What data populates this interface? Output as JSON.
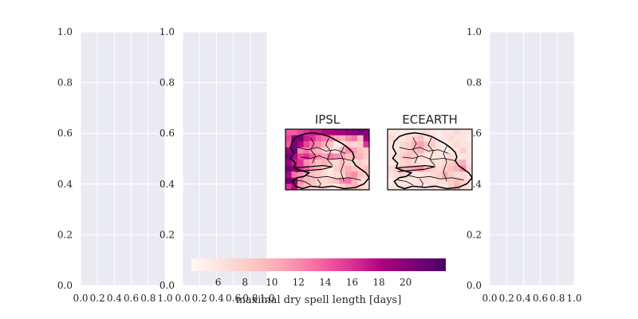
{
  "chart_data": [
    {
      "type": "scatter",
      "panel": "empty-axes-1",
      "x_ticks": [
        "0.0",
        "0.2",
        "0.4",
        "0.6",
        "0.8",
        "1.0"
      ],
      "y_ticks": [
        "0.0",
        "0.2",
        "0.4",
        "0.6",
        "0.8",
        "1.0"
      ],
      "xlim": [
        0,
        1
      ],
      "ylim": [
        0,
        1
      ],
      "grid": true,
      "values": []
    },
    {
      "type": "scatter",
      "panel": "empty-axes-2",
      "x_ticks": [
        "0.0",
        "0.2",
        "0.4",
        "0.6",
        "0.8",
        "1.0"
      ],
      "y_ticks": [
        "0.0",
        "0.2",
        "0.4",
        "0.6",
        "0.8",
        "1.0"
      ],
      "xlim": [
        0,
        1
      ],
      "ylim": [
        0,
        1
      ],
      "grid": true,
      "values": []
    },
    {
      "type": "heatmap",
      "panel": "map-ipsl",
      "title": "IPSL",
      "colormap": "RdPu",
      "grid_values": [
        [
          14,
          14,
          15,
          16,
          17,
          17,
          18,
          18,
          19,
          19,
          20,
          20,
          21,
          20
        ],
        [
          15,
          20,
          21,
          17,
          16,
          14,
          13,
          12,
          11,
          10,
          12,
          13,
          9,
          19
        ],
        [
          14,
          21,
          18,
          15,
          13,
          12,
          10,
          9,
          5,
          6,
          8,
          7,
          8,
          16
        ],
        [
          19,
          21,
          12,
          13,
          11,
          10,
          8,
          7,
          6,
          10,
          12,
          11,
          9,
          8
        ],
        [
          21,
          18,
          15,
          16,
          14,
          12,
          11,
          13,
          12,
          11,
          9,
          10,
          10,
          8
        ],
        [
          19,
          17,
          16,
          12,
          11,
          9,
          10,
          8,
          7,
          9,
          8,
          7,
          8,
          7
        ],
        [
          21,
          19,
          16,
          14,
          11,
          10,
          7,
          6,
          8,
          9,
          10,
          9,
          8,
          9
        ],
        [
          18,
          13,
          12,
          10,
          9,
          8,
          7,
          6,
          7,
          8,
          11,
          12,
          9,
          8
        ],
        [
          21,
          20,
          12,
          10,
          9,
          8,
          7,
          8,
          9,
          12,
          13,
          10,
          7,
          6
        ],
        [
          16,
          18,
          11,
          9,
          8,
          7,
          7,
          6,
          5,
          8,
          9,
          10,
          8,
          7
        ]
      ]
    },
    {
      "type": "heatmap",
      "panel": "map-ecearth",
      "title": "ECEARTH",
      "colormap": "RdPu",
      "grid_values": [
        [
          6,
          6,
          5,
          6,
          5,
          6,
          7,
          6,
          5,
          6,
          6,
          7,
          6,
          6
        ],
        [
          7,
          6,
          6,
          7,
          8,
          9,
          6,
          7,
          5,
          6,
          7,
          6,
          6,
          5
        ],
        [
          6,
          6,
          7,
          8,
          10,
          11,
          9,
          8,
          6,
          5,
          6,
          7,
          6,
          6
        ],
        [
          6,
          6,
          7,
          8,
          9,
          10,
          7,
          7,
          6,
          5,
          6,
          6,
          8,
          6
        ],
        [
          6,
          7,
          8,
          9,
          8,
          7,
          6,
          6,
          6,
          6,
          7,
          6,
          6,
          6
        ],
        [
          6,
          6,
          7,
          8,
          7,
          6,
          6,
          7,
          6,
          7,
          8,
          9,
          10,
          6
        ],
        [
          7,
          8,
          9,
          10,
          11,
          12,
          9,
          8,
          7,
          8,
          9,
          10,
          12,
          7
        ],
        [
          6,
          7,
          8,
          7,
          6,
          6,
          6,
          7,
          8,
          10,
          8,
          7,
          7,
          6
        ],
        [
          5,
          6,
          6,
          6,
          6,
          7,
          7,
          6,
          7,
          7,
          8,
          9,
          8,
          6
        ],
        [
          6,
          6,
          6,
          6,
          6,
          6,
          6,
          7,
          6,
          6,
          8,
          10,
          7,
          6
        ]
      ]
    },
    {
      "type": "scatter",
      "panel": "empty-axes-3",
      "x_ticks": [
        "0.0",
        "0.2",
        "0.4",
        "0.6",
        "0.8",
        "1.0"
      ],
      "y_ticks": [
        "0.0",
        "0.2",
        "0.4",
        "0.6",
        "0.8",
        "1.0"
      ],
      "xlim": [
        0,
        1
      ],
      "ylim": [
        0,
        1
      ],
      "grid": true,
      "values": []
    },
    {
      "type": "colorbar",
      "panel": "colorbar",
      "label": "maximal dry spell length [days]",
      "range": [
        4,
        23
      ],
      "ticks": [
        "6",
        "8",
        "10",
        "12",
        "14",
        "16",
        "18",
        "20"
      ],
      "tick_values": [
        6,
        8,
        10,
        12,
        14,
        16,
        18,
        20
      ],
      "colormap": "RdPu"
    }
  ]
}
